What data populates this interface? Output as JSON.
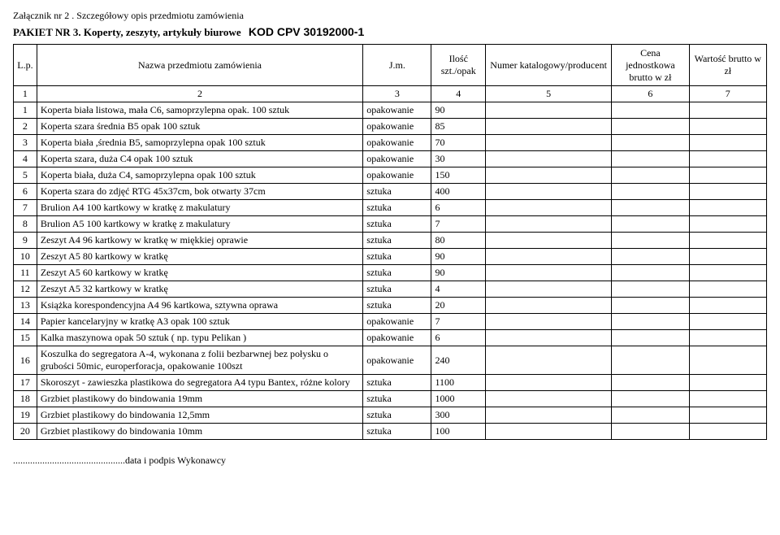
{
  "header": {
    "attachment": "Załącznik nr 2 . Szczegółowy opis przedmiotu zamówienia",
    "pakiet_prefix": "PAKIET NR 3.",
    "pakiet_desc": "Koperty, zeszyty, artykuły biurowe",
    "kod": "KOD CPV 30192000-1"
  },
  "table": {
    "columns": {
      "lp": "L.p.",
      "name": "Nazwa przedmiotu zamówienia",
      "jm": "J.m.",
      "ilosc": "Ilość szt./opak",
      "numer": "Numer katalogowy/producent",
      "cena": "Cena jednostkowa brutto w zł",
      "wartosc": "Wartość brutto w zł"
    },
    "col_nums": [
      "1",
      "2",
      "3",
      "4",
      "5",
      "6",
      "7"
    ],
    "rows": [
      {
        "lp": "1",
        "name": "Koperta biała listowa, mała C6, samoprzylepna opak. 100 sztuk",
        "jm": "opakowanie",
        "qty": "90"
      },
      {
        "lp": "2",
        "name": "Koperta szara średnia  B5 opak 100 sztuk",
        "jm": "opakowanie",
        "qty": "85"
      },
      {
        "lp": "3",
        "name": "Koperta biała ,średnia B5, samoprzylepna opak 100 sztuk",
        "jm": "opakowanie",
        "qty": "70"
      },
      {
        "lp": "4",
        "name": "Koperta szara, duża C4 opak 100 sztuk",
        "jm": "opakowanie",
        "qty": "30"
      },
      {
        "lp": "5",
        "name": "Koperta biała, duża C4, samoprzylepna opak 100 sztuk",
        "jm": "opakowanie",
        "qty": "150"
      },
      {
        "lp": "6",
        "name": "Koperta szara do zdjęć RTG 45x37cm, bok otwarty 37cm",
        "jm": "sztuka",
        "qty": "400"
      },
      {
        "lp": "7",
        "name": "Brulion A4 100 kartkowy w kratkę z makulatury",
        "jm": "sztuka",
        "qty": "6"
      },
      {
        "lp": "8",
        "name": "Brulion A5 100 kartkowy w kratkę z makulatury",
        "jm": "sztuka",
        "qty": "7"
      },
      {
        "lp": "9",
        "name": "Zeszyt A4 96 kartkowy w kratkę w miękkiej oprawie",
        "jm": "sztuka",
        "qty": "80"
      },
      {
        "lp": "10",
        "name": "Zeszyt A5 80 kartkowy w kratkę",
        "jm": "sztuka",
        "qty": "90"
      },
      {
        "lp": "11",
        "name": "Zeszyt A5 60 kartkowy w kratkę",
        "jm": "sztuka",
        "qty": "90"
      },
      {
        "lp": "12",
        "name": "Zeszyt A5 32 kartkowy w kratkę",
        "jm": "sztuka",
        "qty": "4"
      },
      {
        "lp": "13",
        "name": "Książka korespondencyjna A4 96 kartkowa, sztywna oprawa",
        "jm": "sztuka",
        "qty": "20"
      },
      {
        "lp": "14",
        "name": "Papier kancelaryjny w kratkę A3 opak 100 sztuk",
        "jm": "opakowanie",
        "qty": "7"
      },
      {
        "lp": "15",
        "name": "Kalka maszynowa opak 50 sztuk  ( np. typu Pelikan )",
        "jm": "opakowanie",
        "qty": "6"
      },
      {
        "lp": "16",
        "name": "Koszulka do segregatora A-4, wykonana z folii bezbarwnej bez połysku o grubości 50mic, europerforacja, opakowanie 100szt",
        "jm": "opakowanie",
        "qty": "240"
      },
      {
        "lp": "17",
        "name": "Skoroszyt - zawieszka plastikowa do segregatora A4 typu Bantex, różne kolory",
        "jm": "sztuka",
        "qty": "1100"
      },
      {
        "lp": "18",
        "name": "Grzbiet plastikowy do bindowania 19mm",
        "jm": "sztuka",
        "qty": "1000"
      },
      {
        "lp": "19",
        "name": "Grzbiet plastikowy do bindowania 12,5mm",
        "jm": "sztuka",
        "qty": "300"
      },
      {
        "lp": "20",
        "name": "Grzbiet plastikowy do bindowania 10mm",
        "jm": "sztuka",
        "qty": "100"
      }
    ]
  },
  "footer": {
    "dots": "..............................................",
    "text": "data i podpis Wykonawcy"
  }
}
